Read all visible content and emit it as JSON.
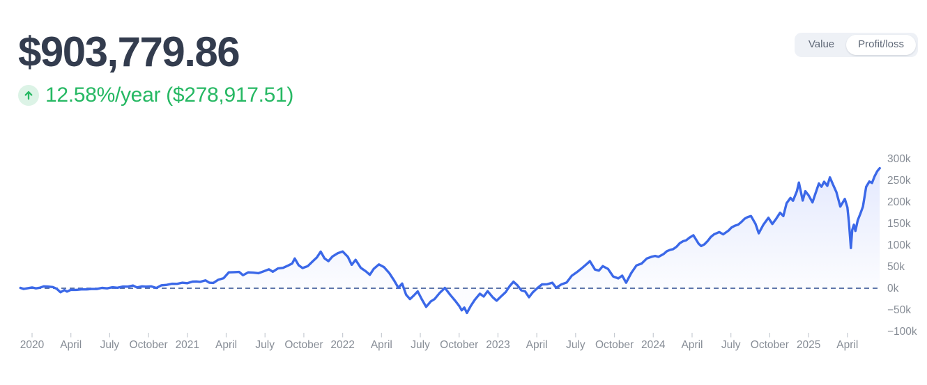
{
  "header": {
    "total_value": "$903,779.86",
    "return_text": "12.58%/year ($278,917.51)",
    "up_arrow_icon": "arrow-up"
  },
  "toggle": {
    "options": [
      {
        "label": "Value",
        "selected": false
      },
      {
        "label": "Profit/loss",
        "selected": true
      }
    ]
  },
  "colors": {
    "title_text": "#333c4e",
    "positive_green": "#26b863",
    "green_badge_bg": "#dcf3e6",
    "line_blue": "#3b68e8",
    "area_fill_base": "#4c6ef5",
    "zero_line_blue": "#47639f",
    "axis_text": "#878d96",
    "tick_mark": "#c6cbd2",
    "toggle_bg": "#eef1f6",
    "toggle_text": "#5f6877",
    "toggle_pill_bg": "#ffffff"
  },
  "chart_data": {
    "type": "area",
    "title": "Portfolio profit/loss over time",
    "xlabel": "",
    "ylabel": "",
    "x_unit": "months since 2020-01",
    "y_unit": "USD thousands",
    "x_range": [
      -0.9,
      66.2
    ],
    "ylim": [
      -100,
      300
    ],
    "baseline": 0,
    "zero_line_dashed": true,
    "grid": false,
    "legend_position": "none",
    "y_ticks": [
      {
        "v": 300,
        "label": "300k"
      },
      {
        "v": 250,
        "label": "250k"
      },
      {
        "v": 200,
        "label": "200k"
      },
      {
        "v": 150,
        "label": "150k"
      },
      {
        "v": 100,
        "label": "100k"
      },
      {
        "v": 50,
        "label": "50k"
      },
      {
        "v": 0,
        "label": "0k"
      },
      {
        "v": -50,
        "label": "−50k"
      },
      {
        "v": -100,
        "label": "−100k"
      }
    ],
    "x_ticks": [
      {
        "t": 0,
        "label": "2020"
      },
      {
        "t": 3,
        "label": "April"
      },
      {
        "t": 6,
        "label": "July"
      },
      {
        "t": 9,
        "label": "October"
      },
      {
        "t": 12,
        "label": "2021"
      },
      {
        "t": 15,
        "label": "April"
      },
      {
        "t": 18,
        "label": "July"
      },
      {
        "t": 21,
        "label": "October"
      },
      {
        "t": 24,
        "label": "2022"
      },
      {
        "t": 27,
        "label": "April"
      },
      {
        "t": 30,
        "label": "July"
      },
      {
        "t": 33,
        "label": "October"
      },
      {
        "t": 36,
        "label": "2023"
      },
      {
        "t": 39,
        "label": "April"
      },
      {
        "t": 42,
        "label": "July"
      },
      {
        "t": 45,
        "label": "October"
      },
      {
        "t": 48,
        "label": "2024"
      },
      {
        "t": 51,
        "label": "April"
      },
      {
        "t": 54,
        "label": "July"
      },
      {
        "t": 57,
        "label": "October"
      },
      {
        "t": 60,
        "label": "2025"
      },
      {
        "t": 63,
        "label": "April"
      }
    ],
    "series": [
      {
        "name": "profit_loss_k",
        "points": [
          [
            -0.9,
            0
          ],
          [
            -0.4,
            0.5
          ],
          [
            0,
            1
          ],
          [
            0.6,
            2
          ],
          [
            1.2,
            3
          ],
          [
            1.6,
            3.5
          ],
          [
            1.9,
            -2
          ],
          [
            2.2,
            -8.5
          ],
          [
            2.5,
            -5
          ],
          [
            2.7,
            -7
          ],
          [
            3,
            -4.5
          ],
          [
            3.4,
            -3
          ],
          [
            3.8,
            -3.5
          ],
          [
            4.2,
            -2
          ],
          [
            4.6,
            -2.5
          ],
          [
            5,
            -1
          ],
          [
            5.4,
            0
          ],
          [
            5.8,
            0.5
          ],
          [
            6.2,
            1.5
          ],
          [
            6.6,
            2
          ],
          [
            7,
            3
          ],
          [
            7.4,
            4.5
          ],
          [
            7.8,
            5.5
          ],
          [
            8.1,
            2.5
          ],
          [
            8.5,
            3.5
          ],
          [
            8.8,
            4.5
          ],
          [
            9.2,
            3.5
          ],
          [
            9.6,
            1.5
          ],
          [
            10,
            6
          ],
          [
            10.4,
            8.5
          ],
          [
            10.8,
            9.5
          ],
          [
            11.2,
            11
          ],
          [
            11.6,
            12
          ],
          [
            12,
            12.5
          ],
          [
            12.4,
            14.5
          ],
          [
            12.7,
            16.5
          ],
          [
            13,
            14
          ],
          [
            13.4,
            19
          ],
          [
            13.7,
            12
          ],
          [
            14,
            13
          ],
          [
            14.4,
            19
          ],
          [
            14.8,
            24
          ],
          [
            15.2,
            36
          ],
          [
            15.6,
            38
          ],
          [
            16,
            37
          ],
          [
            16.3,
            31
          ],
          [
            16.7,
            36
          ],
          [
            17.1,
            37
          ],
          [
            17.5,
            34
          ],
          [
            17.9,
            40
          ],
          [
            18.3,
            43
          ],
          [
            18.6,
            39
          ],
          [
            19,
            45
          ],
          [
            19.4,
            48
          ],
          [
            19.8,
            52
          ],
          [
            20.1,
            58
          ],
          [
            20.3,
            68
          ],
          [
            20.6,
            54
          ],
          [
            20.9,
            46
          ],
          [
            21.3,
            52
          ],
          [
            21.7,
            62
          ],
          [
            22,
            72
          ],
          [
            22.3,
            84
          ],
          [
            22.6,
            70
          ],
          [
            22.9,
            62
          ],
          [
            23.2,
            74
          ],
          [
            23.6,
            80
          ],
          [
            24,
            86
          ],
          [
            24.4,
            72
          ],
          [
            24.7,
            55
          ],
          [
            25,
            65
          ],
          [
            25.4,
            48
          ],
          [
            25.8,
            38
          ],
          [
            26.1,
            32
          ],
          [
            26.4,
            44
          ],
          [
            26.8,
            56
          ],
          [
            27.2,
            48
          ],
          [
            27.6,
            36
          ],
          [
            28,
            16
          ],
          [
            28.3,
            2
          ],
          [
            28.6,
            10
          ],
          [
            28.9,
            -14
          ],
          [
            29.2,
            -26
          ],
          [
            29.5,
            -16
          ],
          [
            29.8,
            -8
          ],
          [
            30.1,
            -24
          ],
          [
            30.45,
            -44
          ],
          [
            30.8,
            -30
          ],
          [
            31.1,
            -26
          ],
          [
            31.5,
            -10
          ],
          [
            31.9,
            0
          ],
          [
            32.3,
            -14
          ],
          [
            32.7,
            -30
          ],
          [
            33,
            -40
          ],
          [
            33.2,
            -52
          ],
          [
            33.4,
            -44
          ],
          [
            33.6,
            -58
          ],
          [
            33.9,
            -40
          ],
          [
            34.2,
            -28
          ],
          [
            34.6,
            -12
          ],
          [
            34.9,
            -20
          ],
          [
            35.2,
            -6
          ],
          [
            35.6,
            -22
          ],
          [
            35.9,
            -28
          ],
          [
            36.3,
            -18
          ],
          [
            36.6,
            -8
          ],
          [
            36.9,
            4
          ],
          [
            37.2,
            16
          ],
          [
            37.5,
            6
          ],
          [
            37.8,
            -4
          ],
          [
            38.1,
            -8
          ],
          [
            38.4,
            -20
          ],
          [
            38.7,
            -10
          ],
          [
            39,
            0
          ],
          [
            39.4,
            8
          ],
          [
            39.8,
            10
          ],
          [
            40.2,
            12
          ],
          [
            40.5,
            2
          ],
          [
            40.9,
            8
          ],
          [
            41.3,
            14
          ],
          [
            41.7,
            28
          ],
          [
            42.1,
            38
          ],
          [
            42.5,
            46
          ],
          [
            42.9,
            58
          ],
          [
            43.1,
            62
          ],
          [
            43.5,
            44
          ],
          [
            43.8,
            40
          ],
          [
            44.1,
            52
          ],
          [
            44.5,
            44
          ],
          [
            44.9,
            28
          ],
          [
            45.3,
            22
          ],
          [
            45.6,
            30
          ],
          [
            45.9,
            12
          ],
          [
            46.3,
            36
          ],
          [
            46.7,
            52
          ],
          [
            47.1,
            58
          ],
          [
            47.5,
            68
          ],
          [
            47.9,
            74
          ],
          [
            48.4,
            72
          ],
          [
            48.8,
            80
          ],
          [
            49.3,
            88
          ],
          [
            49.8,
            97
          ],
          [
            50.3,
            108
          ],
          [
            50.8,
            118
          ],
          [
            51.1,
            122
          ],
          [
            51.5,
            104
          ],
          [
            51.7,
            97
          ],
          [
            52.2,
            110
          ],
          [
            52.7,
            124
          ],
          [
            53.1,
            131
          ],
          [
            53.4,
            124
          ],
          [
            53.8,
            134
          ],
          [
            54.3,
            144
          ],
          [
            54.8,
            154
          ],
          [
            55.3,
            164
          ],
          [
            55.55,
            168
          ],
          [
            55.9,
            148
          ],
          [
            56.15,
            128
          ],
          [
            56.5,
            146
          ],
          [
            56.9,
            164
          ],
          [
            57.2,
            148
          ],
          [
            57.5,
            162
          ],
          [
            57.8,
            174
          ],
          [
            58.05,
            168
          ],
          [
            58.3,
            196
          ],
          [
            58.6,
            210
          ],
          [
            58.8,
            202
          ],
          [
            59.1,
            226
          ],
          [
            59.25,
            244
          ],
          [
            59.55,
            204
          ],
          [
            59.75,
            224
          ],
          [
            60,
            216
          ],
          [
            60.3,
            198
          ],
          [
            60.55,
            222
          ],
          [
            60.8,
            242
          ],
          [
            61,
            236
          ],
          [
            61.2,
            246
          ],
          [
            61.45,
            238
          ],
          [
            61.65,
            256
          ],
          [
            61.9,
            240
          ],
          [
            62.15,
            222
          ],
          [
            62.45,
            190
          ],
          [
            62.8,
            206
          ],
          [
            63,
            188
          ],
          [
            63.12,
            152
          ],
          [
            63.27,
            94
          ],
          [
            63.37,
            134
          ],
          [
            63.5,
            148
          ],
          [
            63.62,
            132
          ],
          [
            63.8,
            158
          ],
          [
            64,
            172
          ],
          [
            64.2,
            190
          ],
          [
            64.45,
            234
          ],
          [
            64.7,
            248
          ],
          [
            64.9,
            243
          ],
          [
            65.1,
            260
          ],
          [
            65.3,
            270
          ],
          [
            65.5,
            278.9
          ]
        ]
      }
    ],
    "end_value_k": 278.9
  }
}
